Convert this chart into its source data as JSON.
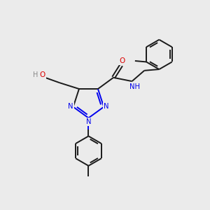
{
  "background_color": "#ebebeb",
  "bond_color": "#1a1a1a",
  "N_color": "#0000ee",
  "O_color": "#dd0000",
  "teal_color": "#008080",
  "figsize": [
    3.0,
    3.0
  ],
  "dpi": 100,
  "xlim": [
    0,
    10
  ],
  "ylim": [
    0,
    10
  ]
}
